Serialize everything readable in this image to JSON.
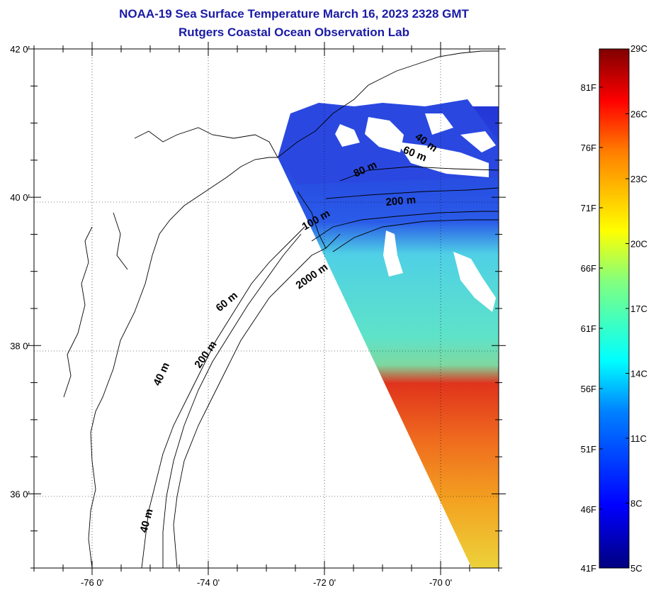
{
  "title": {
    "line1": "NOAA-19 Sea Surface Temperature March 16, 2023 2328 GMT",
    "line2": "Rutgers Coastal Ocean Observation Lab"
  },
  "map": {
    "lon_min": -77.0,
    "lon_max": -69.0,
    "lat_min": 35.0,
    "lat_max": 42.0,
    "x_ticks": [
      {
        "value": -76,
        "label": "-76 0'"
      },
      {
        "value": -74,
        "label": "-74 0'"
      },
      {
        "value": -72,
        "label": "-72 0'"
      },
      {
        "value": -70,
        "label": "-70 0'"
      }
    ],
    "y_ticks": [
      {
        "value": 42,
        "label": "42 0'"
      },
      {
        "value": 40,
        "label": "40 0'"
      },
      {
        "value": 38,
        "label": "38 0'"
      },
      {
        "value": 36,
        "label": "36 0'"
      }
    ],
    "grid": "dotted",
    "bathymetry_labels": [
      "40 m",
      "60 m",
      "80 m",
      "100 m",
      "200 m",
      "2000 m",
      "60 m",
      "40 m",
      "200 m",
      "40 m"
    ]
  },
  "colorbar": {
    "range_c": [
      5,
      29
    ],
    "celsius_labels": [
      "29C",
      "26C",
      "23C",
      "20C",
      "17C",
      "14C",
      "11C",
      "8C",
      "5C"
    ],
    "fahrenheit_labels": [
      "81F",
      "76F",
      "71F",
      "66F",
      "61F",
      "56F",
      "51F",
      "46F",
      "41F"
    ],
    "colors": [
      "#00007f",
      "#0000ff",
      "#0080ff",
      "#00ffff",
      "#80ff80",
      "#ffff00",
      "#ff8000",
      "#ff0000",
      "#7f0000"
    ]
  }
}
